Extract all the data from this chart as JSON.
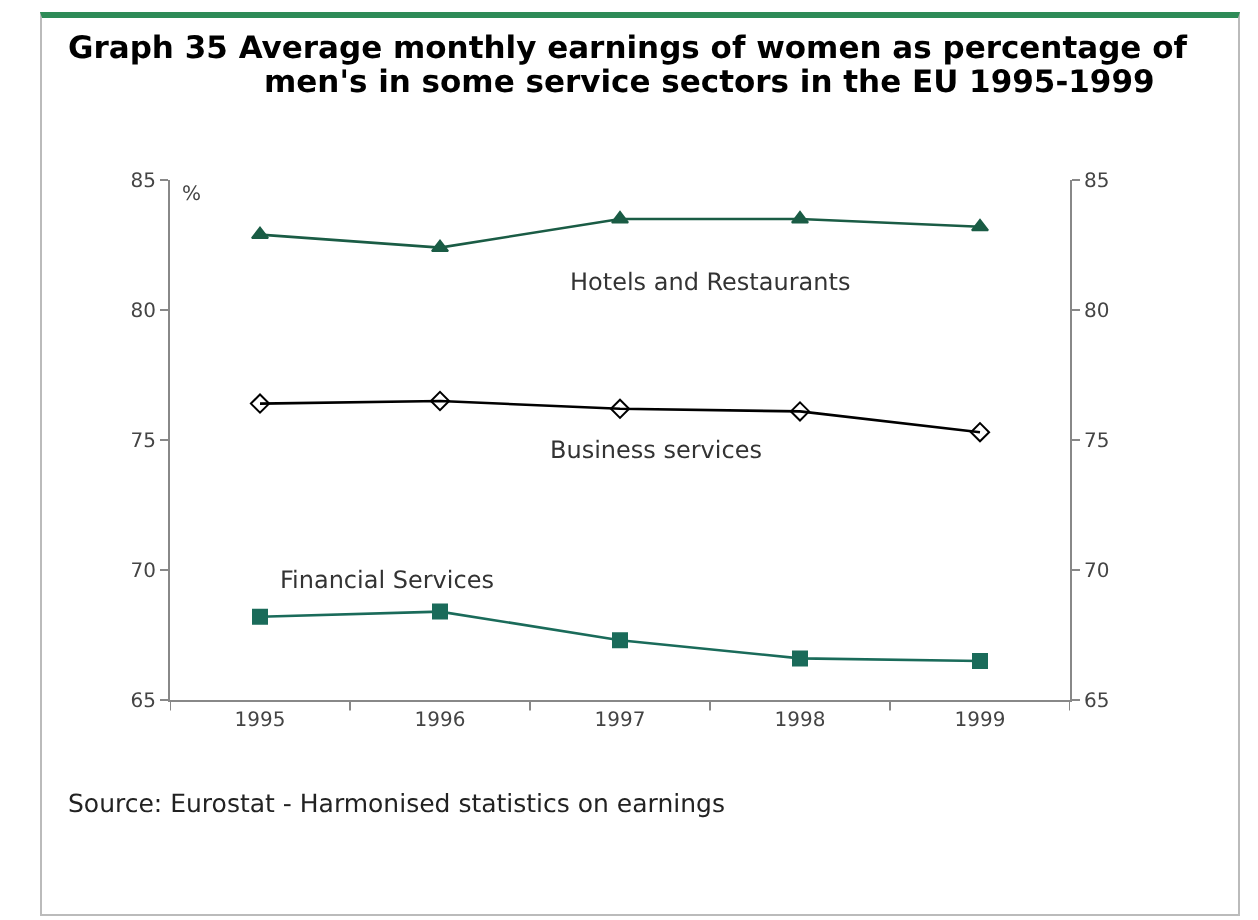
{
  "chart_data": {
    "type": "line",
    "title": "Graph 35  Average monthly earnings of women as percentage of men's in some service sectors in the EU 1995-1999",
    "ylabel": "%",
    "categories": [
      "1995",
      "1996",
      "1997",
      "1998",
      "1999"
    ],
    "series": [
      {
        "name": "Hotels and Restaurants",
        "color": "#1a5c45",
        "marker": "triangle",
        "values": [
          82.9,
          82.4,
          83.5,
          83.5,
          83.2
        ]
      },
      {
        "name": "Business services",
        "color": "#000000",
        "marker": "diamond",
        "values": [
          76.4,
          76.5,
          76.2,
          76.1,
          75.3
        ]
      },
      {
        "name": "Financial Services",
        "color": "#1a6b5a",
        "marker": "square",
        "values": [
          68.2,
          68.4,
          67.3,
          66.6,
          66.5
        ]
      }
    ],
    "ylim": [
      65,
      85
    ],
    "yticks": [
      65,
      70,
      75,
      80,
      85
    ],
    "y2lim": [
      65,
      85
    ],
    "y2ticks": [
      65,
      70,
      75,
      80,
      85
    ],
    "grid": false,
    "legend": false,
    "annotations": [
      "Source: Eurostat - Harmonised statistics on earnings"
    ]
  }
}
